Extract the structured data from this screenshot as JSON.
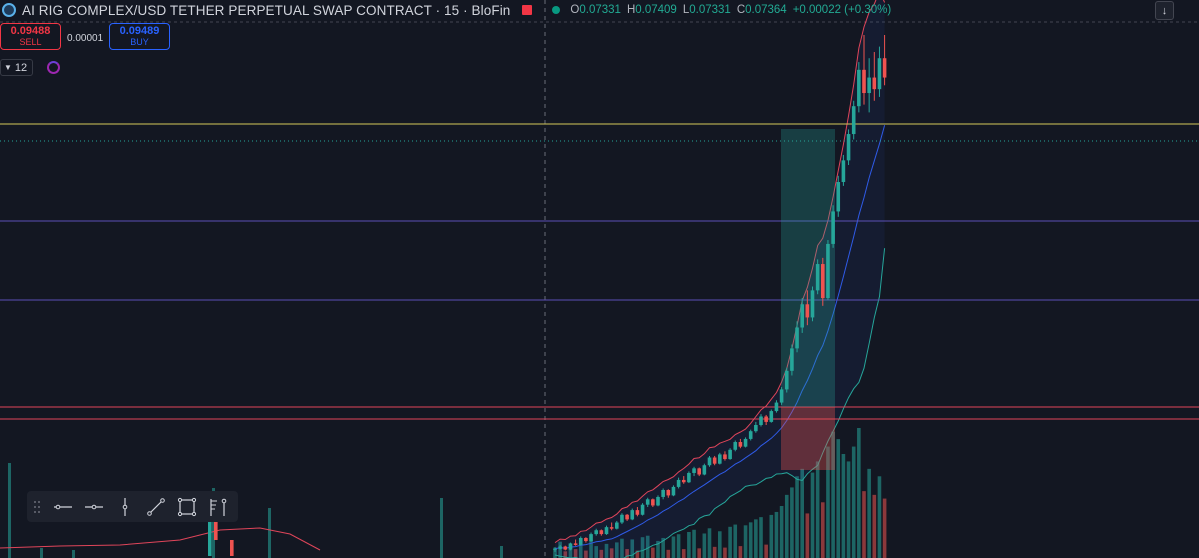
{
  "header": {
    "symbol_title": "AI RIG COMPLEX/USD TETHER PERPETUAL SWAP CONTRACT · 15 · BloFin",
    "ohlc": [
      {
        "key": "O",
        "value": "0.07331"
      },
      {
        "key": "H",
        "value": "0.07409"
      },
      {
        "key": "L",
        "value": "0.07331"
      },
      {
        "key": "C",
        "value": "0.07364"
      }
    ],
    "change": "+0.00022 (+0.30%)",
    "collapse_icon": "arrow-down-icon"
  },
  "trade": {
    "sell_price": "0.09488",
    "sell_label": "SELL",
    "spread": "0.00001",
    "buy_price": "0.09489",
    "buy_label": "BUY"
  },
  "indicator": {
    "interval_value": "12"
  },
  "toolbar": {
    "tools": [
      "horizontal-line-icon",
      "horizontal-ray-icon",
      "vertical-line-icon",
      "trend-line-icon",
      "rectangle-icon",
      "fib-icon"
    ]
  },
  "colors": {
    "background": "#131722",
    "up": "#26a69a",
    "down": "#ef5350",
    "yellow_level": "#d4c85a",
    "purple_level": "#5b4fb5",
    "red_level": "#e0455a",
    "band_upper": "#e0455a",
    "band_middle": "#2f5be8",
    "band_lower": "#26a69a"
  },
  "chart_data": {
    "type": "candlestick",
    "candles": [
      [
        0.0325,
        0.0328,
        0.0322,
        0.0326
      ],
      [
        0.0326,
        0.0331,
        0.0325,
        0.0329
      ],
      [
        0.0329,
        0.033,
        0.0324,
        0.0325
      ],
      [
        0.0325,
        0.0334,
        0.0324,
        0.0333
      ],
      [
        0.0333,
        0.0338,
        0.033,
        0.0331
      ],
      [
        0.0331,
        0.0342,
        0.033,
        0.034
      ],
      [
        0.034,
        0.0341,
        0.0334,
        0.0336
      ],
      [
        0.0336,
        0.0347,
        0.0335,
        0.0345
      ],
      [
        0.0345,
        0.0352,
        0.0343,
        0.035
      ],
      [
        0.035,
        0.0351,
        0.0343,
        0.0345
      ],
      [
        0.0345,
        0.0356,
        0.0344,
        0.0354
      ],
      [
        0.0354,
        0.036,
        0.035,
        0.0352
      ],
      [
        0.0352,
        0.0362,
        0.0351,
        0.036
      ],
      [
        0.036,
        0.0372,
        0.0358,
        0.037
      ],
      [
        0.037,
        0.0371,
        0.0362,
        0.0364
      ],
      [
        0.0364,
        0.0378,
        0.0363,
        0.0376
      ],
      [
        0.0376,
        0.038,
        0.0368,
        0.037
      ],
      [
        0.037,
        0.0385,
        0.0369,
        0.0383
      ],
      [
        0.0383,
        0.0392,
        0.038,
        0.039
      ],
      [
        0.039,
        0.0391,
        0.038,
        0.0382
      ],
      [
        0.0382,
        0.0395,
        0.0381,
        0.0393
      ],
      [
        0.0393,
        0.0404,
        0.039,
        0.0402
      ],
      [
        0.0402,
        0.0403,
        0.0392,
        0.0395
      ],
      [
        0.0395,
        0.0408,
        0.0394,
        0.0406
      ],
      [
        0.0406,
        0.0418,
        0.0404,
        0.0415
      ],
      [
        0.0415,
        0.042,
        0.041,
        0.0412
      ],
      [
        0.0412,
        0.0426,
        0.0411,
        0.0424
      ],
      [
        0.0424,
        0.0432,
        0.042,
        0.043
      ],
      [
        0.043,
        0.0431,
        0.042,
        0.0422
      ],
      [
        0.0422,
        0.0436,
        0.0421,
        0.0434
      ],
      [
        0.0434,
        0.0446,
        0.0432,
        0.0444
      ],
      [
        0.0444,
        0.0446,
        0.0434,
        0.0436
      ],
      [
        0.0436,
        0.045,
        0.0435,
        0.0448
      ],
      [
        0.0448,
        0.0452,
        0.044,
        0.0442
      ],
      [
        0.0442,
        0.0456,
        0.0441,
        0.0454
      ],
      [
        0.0454,
        0.0466,
        0.0452,
        0.0464
      ],
      [
        0.0464,
        0.0468,
        0.0456,
        0.0458
      ],
      [
        0.0458,
        0.047,
        0.0457,
        0.0468
      ],
      [
        0.0468,
        0.048,
        0.0466,
        0.0478
      ],
      [
        0.0478,
        0.049,
        0.0476,
        0.0486
      ],
      [
        0.0486,
        0.05,
        0.0484,
        0.0497
      ],
      [
        0.0497,
        0.0499,
        0.0486,
        0.049
      ],
      [
        0.049,
        0.0506,
        0.0489,
        0.0504
      ],
      [
        0.0504,
        0.0518,
        0.0502,
        0.0515
      ],
      [
        0.0515,
        0.0535,
        0.0512,
        0.0532
      ],
      [
        0.0532,
        0.056,
        0.0528,
        0.0556
      ],
      [
        0.0556,
        0.059,
        0.055,
        0.0585
      ],
      [
        0.0585,
        0.062,
        0.058,
        0.0612
      ],
      [
        0.0612,
        0.065,
        0.0605,
        0.0642
      ],
      [
        0.0642,
        0.066,
        0.0615,
        0.0625
      ],
      [
        0.0625,
        0.0665,
        0.062,
        0.066
      ],
      [
        0.066,
        0.07,
        0.0655,
        0.0694
      ],
      [
        0.0694,
        0.0702,
        0.064,
        0.065
      ],
      [
        0.065,
        0.0725,
        0.0648,
        0.072
      ],
      [
        0.072,
        0.077,
        0.0715,
        0.0762
      ],
      [
        0.0762,
        0.0808,
        0.0755,
        0.08
      ],
      [
        0.08,
        0.0835,
        0.0795,
        0.0828
      ],
      [
        0.0828,
        0.0868,
        0.0822,
        0.0862
      ],
      [
        0.0862,
        0.0905,
        0.0855,
        0.0898
      ],
      [
        0.0898,
        0.0955,
        0.089,
        0.0945
      ],
      [
        0.0945,
        0.099,
        0.09,
        0.0915
      ],
      [
        0.0915,
        0.096,
        0.089,
        0.0935
      ],
      [
        0.0935,
        0.0968,
        0.0905,
        0.092
      ],
      [
        0.092,
        0.0975,
        0.091,
        0.096
      ],
      [
        0.096,
        0.099,
        0.0925,
        0.0935
      ]
    ],
    "volumes": [
      14,
      22,
      9,
      18,
      12,
      20,
      10,
      24,
      16,
      11,
      19,
      13,
      21,
      26,
      12,
      25,
      10,
      28,
      30,
      14,
      23,
      27,
      11,
      29,
      32,
      12,
      35,
      38,
      13,
      33,
      40,
      15,
      36,
      14,
      42,
      45,
      16,
      44,
      48,
      52,
      55,
      18,
      58,
      62,
      70,
      85,
      95,
      110,
      120,
      60,
      115,
      130,
      75,
      150,
      170,
      160,
      140,
      130,
      150,
      175,
      90,
      120,
      85,
      110,
      80
    ]
  }
}
